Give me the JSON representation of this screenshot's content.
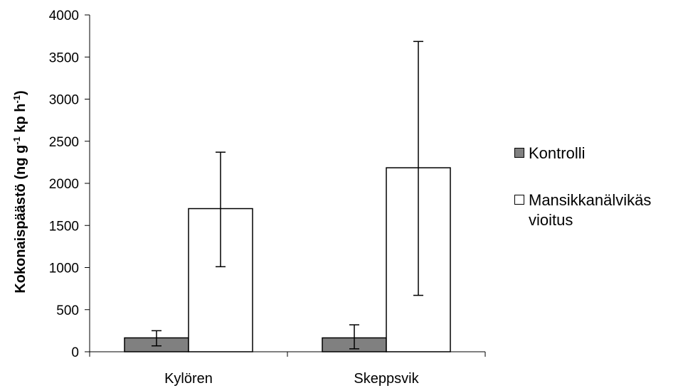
{
  "chart_data": {
    "type": "bar",
    "categories": [
      "Kylören",
      "Skeppsvik"
    ],
    "series": [
      {
        "name": "Kontrolli",
        "color": "#808080",
        "values": [
          165,
          165
        ],
        "error_low": [
          70,
          35
        ],
        "error_high": [
          250,
          320
        ]
      },
      {
        "name": "Mansikkanälvikäs vioitus",
        "color": "#ffffff",
        "values": [
          1700,
          2185
        ],
        "error_low": [
          1010,
          670
        ],
        "error_high": [
          2370,
          3685
        ]
      }
    ],
    "ylabel_parts": [
      "Kokonaispäästö (ng g",
      "-1",
      " kp h",
      "-1",
      ")"
    ],
    "yticks": [
      0,
      500,
      1000,
      1500,
      2000,
      2500,
      3000,
      3500,
      4000
    ],
    "ylim": [
      0,
      4000
    ],
    "grid": false,
    "legend_position": "right"
  }
}
